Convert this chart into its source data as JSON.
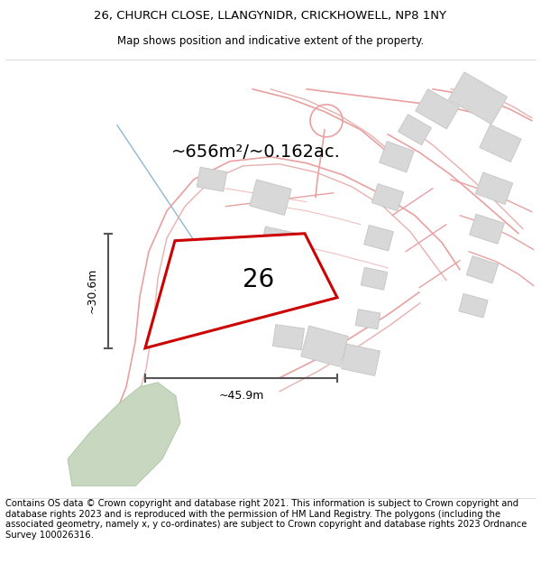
{
  "title_line1": "26, CHURCH CLOSE, LLANGYNIDR, CRICKHOWELL, NP8 1NY",
  "title_line2": "Map shows position and indicative extent of the property.",
  "area_text": "~656m²/~0.162ac.",
  "width_label": "~45.9m",
  "height_label": "~30.6m",
  "number_label": "26",
  "footer_text": "Contains OS data © Crown copyright and database right 2021. This information is subject to Crown copyright and database rights 2023 and is reproduced with the permission of HM Land Registry. The polygons (including the associated geometry, namely x, y co-ordinates) are subject to Crown copyright and database rights 2023 Ordnance Survey 100026316.",
  "bg_color": "#ffffff",
  "map_bg": "#f7f7f7",
  "road_color": "#f0b8b8",
  "road_line_color": "#e8a0a0",
  "building_color": "#d8d8d8",
  "building_outline": "#c8c8c8",
  "plot_edge_color": "#cc0000",
  "green_color": "#c8d8c0",
  "water_color": "#a0c8d8",
  "dim_color": "#555555",
  "title_fontsize": 9.5,
  "subtitle_fontsize": 8.5,
  "footer_fontsize": 7.2,
  "area_fontsize": 14,
  "label_fontsize": 9,
  "number_fontsize": 20
}
